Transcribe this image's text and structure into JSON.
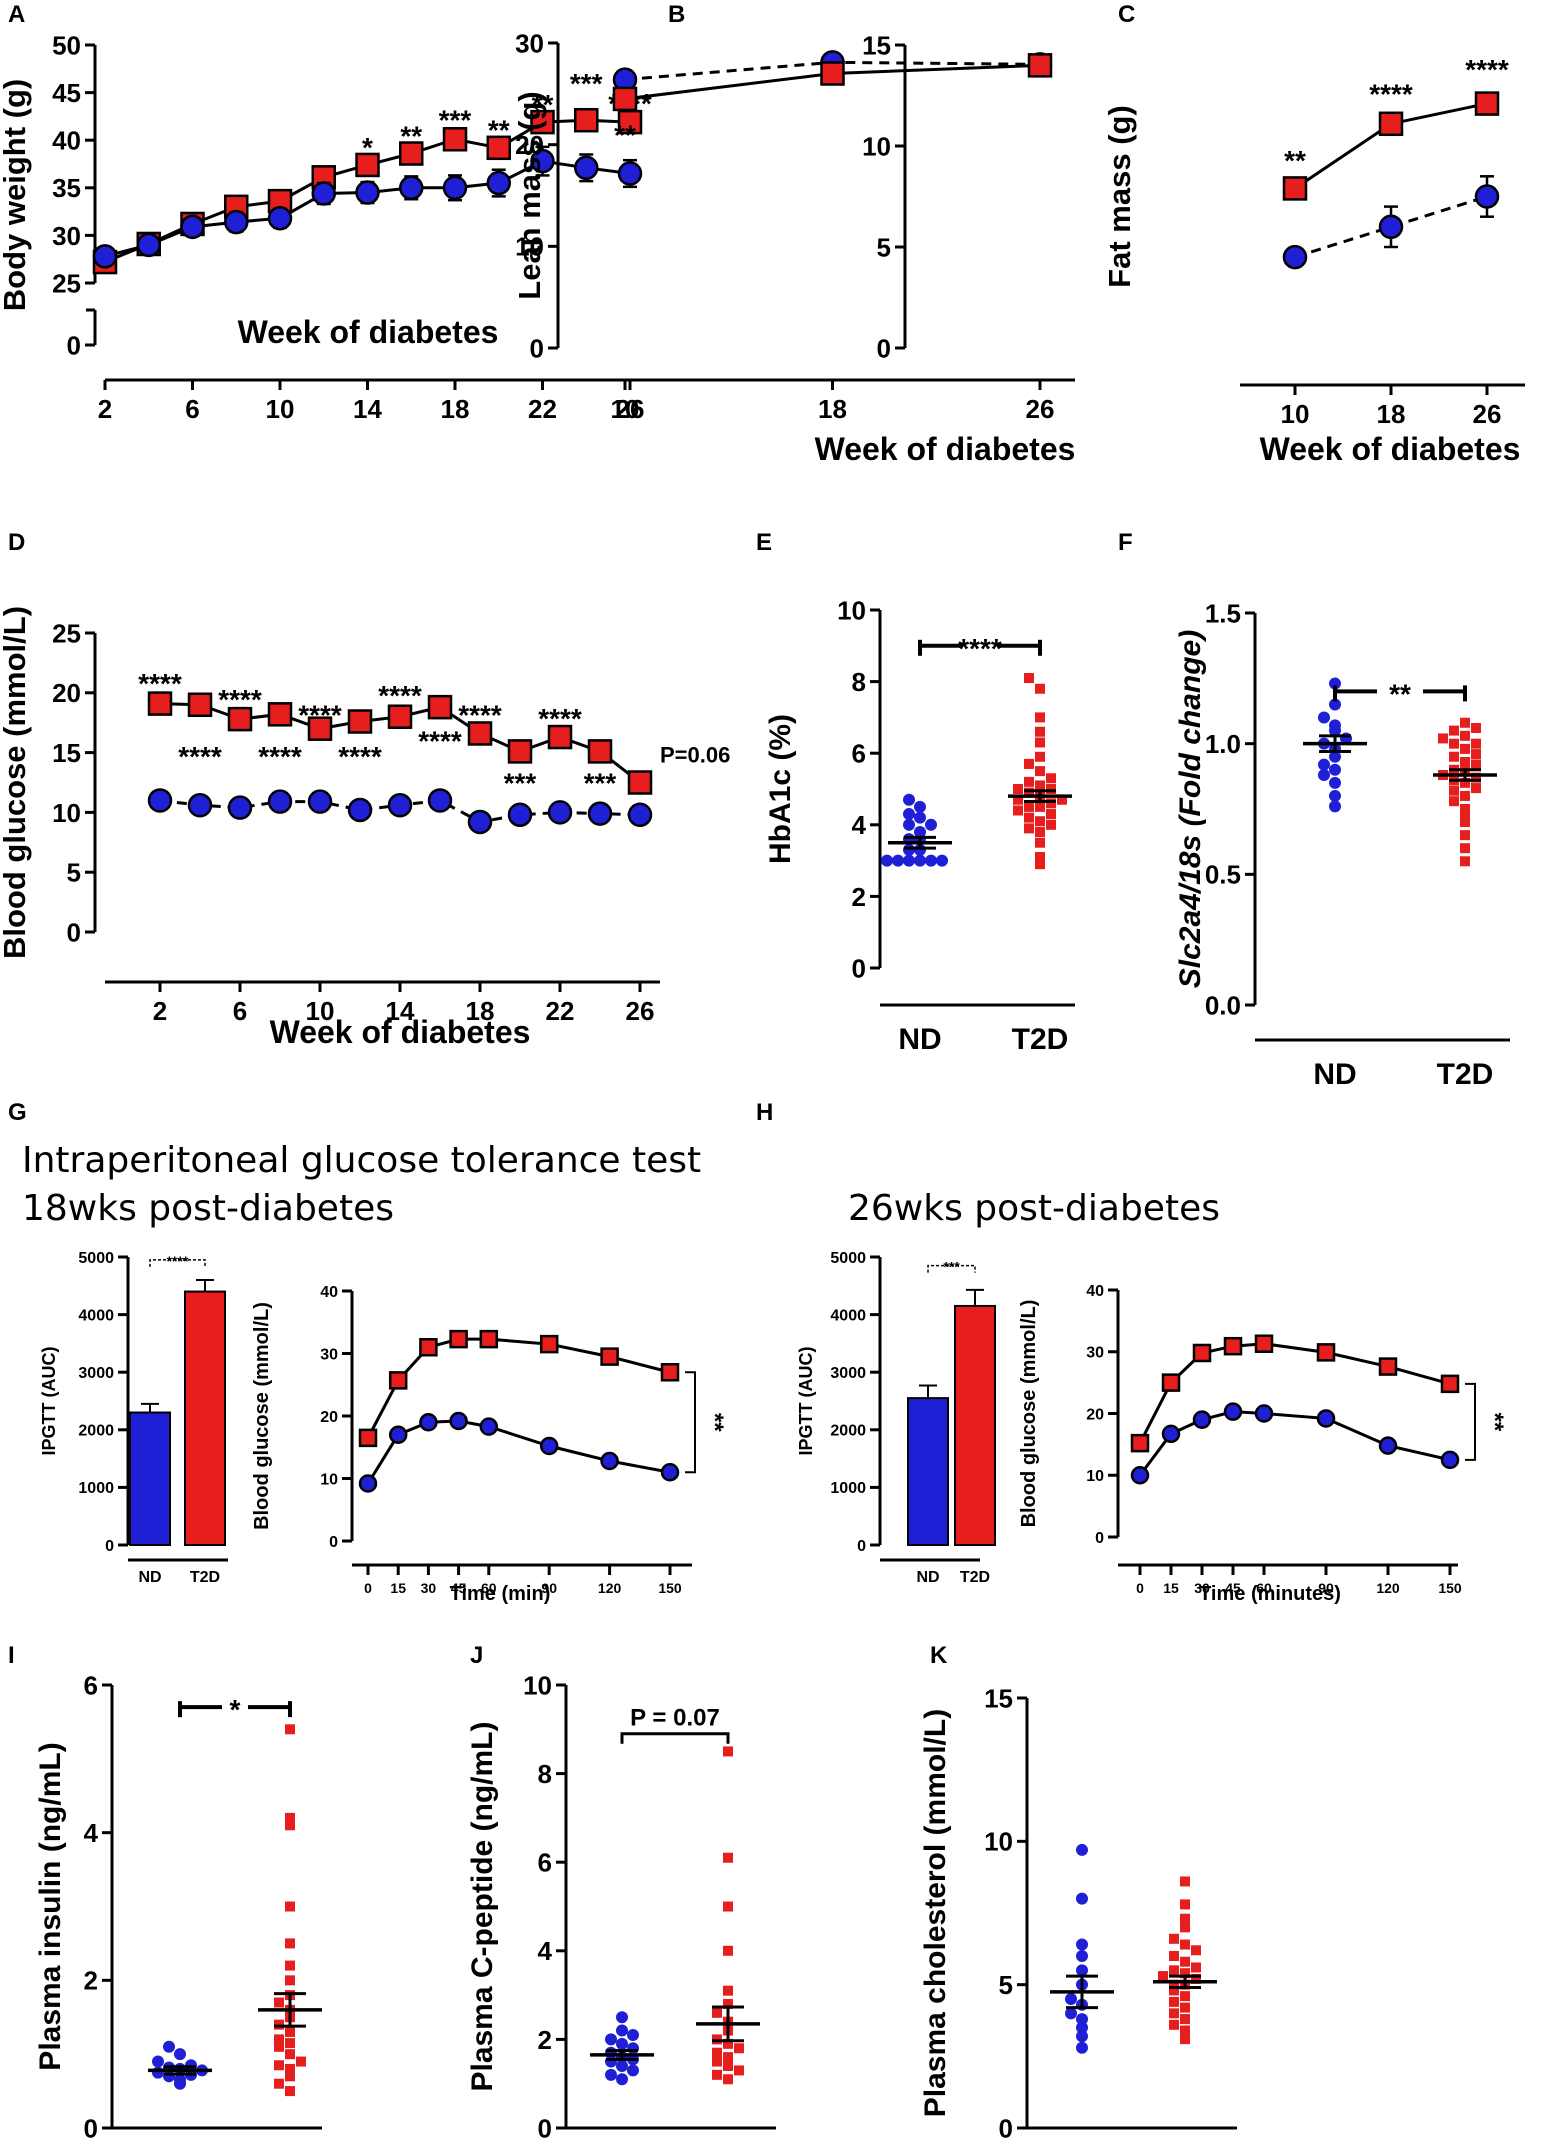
{
  "colors": {
    "nd": "#1f1fd6",
    "t2d": "#e61e1e",
    "axis": "#000000"
  },
  "titles": {
    "ipgtt": "Intraperitoneal glucose tolerance test",
    "wk18": "18wks post-diabetes",
    "wk26": "26wks post-diabetes"
  },
  "chart_data": [
    {
      "id": "A",
      "type": "line",
      "xlabel": "Week of diabetes",
      "ylabel": "Body weight (g)",
      "x": [
        2,
        4,
        6,
        8,
        10,
        12,
        14,
        16,
        18,
        20,
        22,
        24,
        26
      ],
      "xticks": [
        "2",
        "6",
        "10",
        "14",
        "18",
        "22",
        "26"
      ],
      "yticks": [
        "0",
        "25",
        "30",
        "35",
        "40",
        "45",
        "50"
      ],
      "ylim": [
        25,
        50
      ],
      "axis_break": true,
      "series": [
        {
          "name": "T2D",
          "marker": "square",
          "style": "solid",
          "values": [
            27.2,
            29.1,
            31.2,
            33.0,
            33.6,
            36.1,
            37.4,
            38.6,
            40.1,
            39.2,
            41.9,
            42.1,
            41.9
          ],
          "err": [
            0.6,
            0.6,
            0.7,
            0.8,
            0.8,
            0.9,
            0.9,
            0.9,
            0.9,
            1.0,
            1.0,
            1.0,
            1.0
          ]
        },
        {
          "name": "ND",
          "marker": "circle",
          "style": "solid",
          "values": [
            27.8,
            29.0,
            30.9,
            31.4,
            31.8,
            34.4,
            34.5,
            35.0,
            35.0,
            35.5,
            37.8,
            37.1,
            36.5
          ],
          "err": [
            0.6,
            0.6,
            0.7,
            1.0,
            1.0,
            1.1,
            1.1,
            1.2,
            1.3,
            1.4,
            1.5,
            1.4,
            1.4
          ]
        }
      ],
      "sig": [
        {
          "x": 14,
          "y": 39.3,
          "text": "*"
        },
        {
          "x": 16,
          "y": 40.5,
          "text": "**"
        },
        {
          "x": 18,
          "y": 42.2,
          "text": "***"
        },
        {
          "x": 20,
          "y": 41.1,
          "text": "**"
        },
        {
          "x": 22,
          "y": 43.8,
          "text": "**"
        },
        {
          "x": 24,
          "y": 46.0,
          "text": "***"
        },
        {
          "x": 26,
          "y": 43.9,
          "text": "****"
        }
      ]
    },
    {
      "id": "B",
      "type": "line",
      "xlabel": "Week of diabetes",
      "ylabel": "Lean mass (g)",
      "x": [
        10,
        18,
        26
      ],
      "xticks": [
        "10",
        "18",
        "26"
      ],
      "yticks": [
        "0",
        "10",
        "20",
        "30"
      ],
      "ylim": [
        0,
        30
      ],
      "series": [
        {
          "name": "ND",
          "marker": "circle",
          "style": "dashed",
          "values": [
            26.4,
            28.1,
            27.9
          ],
          "err": [
            0.4,
            0.4,
            0.4
          ]
        },
        {
          "name": "T2D",
          "marker": "square",
          "style": "solid",
          "values": [
            24.5,
            27.0,
            27.8
          ],
          "err": [
            0.5,
            0.5,
            0.5
          ]
        }
      ],
      "sig": [
        {
          "x": 10,
          "y": 21.0,
          "text": "**"
        }
      ]
    },
    {
      "id": "C",
      "type": "line",
      "xlabel": "Week of diabetes",
      "ylabel": "Fat mass (g)",
      "x": [
        10,
        18,
        26
      ],
      "xticks": [
        "10",
        "18",
        "26"
      ],
      "yticks": [
        "0",
        "5",
        "10",
        "15"
      ],
      "ylim": [
        0,
        15
      ],
      "series": [
        {
          "name": "ND",
          "marker": "circle",
          "style": "dashed",
          "values": [
            4.5,
            6.0,
            7.5
          ],
          "err": [
            0.4,
            1.0,
            1.0
          ]
        },
        {
          "name": "T2D",
          "marker": "square",
          "style": "solid",
          "values": [
            7.9,
            11.1,
            12.1
          ],
          "err": [
            0.3,
            0.4,
            0.5
          ]
        }
      ],
      "sig": [
        {
          "x": 10,
          "y": 9.3,
          "text": "**"
        },
        {
          "x": 18,
          "y": 12.6,
          "text": "****"
        },
        {
          "x": 26,
          "y": 13.8,
          "text": "****"
        }
      ]
    },
    {
      "id": "D",
      "type": "line",
      "xlabel": "Week of diabetes",
      "ylabel": "Blood glucose (mmol/L)",
      "x": [
        2,
        4,
        6,
        8,
        10,
        12,
        14,
        16,
        18,
        20,
        22,
        24,
        26
      ],
      "xticks": [
        "2",
        "6",
        "10",
        "14",
        "18",
        "22",
        "26"
      ],
      "yticks": [
        "0",
        "5",
        "10",
        "15",
        "20",
        "25"
      ],
      "ylim": [
        0,
        25
      ],
      "series": [
        {
          "name": "ND",
          "marker": "circle",
          "style": "dashed",
          "values": [
            11.0,
            10.6,
            10.4,
            10.9,
            10.9,
            10.2,
            10.6,
            11.0,
            9.2,
            9.8,
            10.0,
            9.9,
            9.8
          ],
          "err": [
            0.3,
            0.3,
            0.3,
            0.3,
            0.3,
            0.3,
            0.3,
            0.3,
            0.3,
            0.3,
            0.3,
            0.3,
            0.3
          ]
        },
        {
          "name": "T2D",
          "marker": "square",
          "style": "solid",
          "values": [
            19.1,
            19.0,
            17.8,
            18.2,
            17.0,
            17.6,
            18.0,
            18.8,
            16.6,
            15.1,
            16.3,
            15.1,
            12.5
          ],
          "err": [
            0.9,
            0.9,
            0.9,
            0.7,
            0.6,
            0.9,
            0.9,
            0.9,
            0.5,
            0.8,
            0.6,
            0.5,
            0.3
          ]
        }
      ],
      "sig": [
        {
          "x": 2,
          "y": 20.8,
          "text": "****"
        },
        {
          "x": 4,
          "y": 14.7,
          "text": "****"
        },
        {
          "x": 6,
          "y": 19.5,
          "text": "****"
        },
        {
          "x": 8,
          "y": 14.7,
          "text": "****"
        },
        {
          "x": 10,
          "y": 18.2,
          "text": "****"
        },
        {
          "x": 12,
          "y": 14.7,
          "text": "****"
        },
        {
          "x": 14,
          "y": 19.8,
          "text": "****"
        },
        {
          "x": 16,
          "y": 16.0,
          "text": "****"
        },
        {
          "x": 18,
          "y": 18.2,
          "text": "****"
        },
        {
          "x": 20,
          "y": 12.5,
          "text": "***"
        },
        {
          "x": 22,
          "y": 17.9,
          "text": "****"
        },
        {
          "x": 24,
          "y": 12.5,
          "text": "***"
        },
        {
          "x": 26,
          "y": 15.0,
          "text": "P=0.06"
        }
      ]
    },
    {
      "id": "E",
      "type": "scatter",
      "ylabel": "HbA1c (%)",
      "categories": [
        "ND",
        "T2D"
      ],
      "yticks": [
        "0",
        "2",
        "4",
        "6",
        "8",
        "10"
      ],
      "ylim": [
        0,
        10
      ],
      "groups": [
        {
          "name": "ND",
          "mean": 3.5,
          "sem": 0.15,
          "points": [
            3.0,
            3.0,
            3.0,
            3.0,
            3.0,
            3.0,
            3.3,
            3.3,
            3.6,
            3.6,
            3.8,
            4.0,
            4.0,
            4.2,
            4.3,
            4.5,
            4.7
          ]
        },
        {
          "name": "T2D",
          "mean": 4.8,
          "sem": 0.15,
          "points": [
            2.9,
            3.1,
            3.5,
            3.8,
            3.9,
            4.0,
            4.1,
            4.2,
            4.3,
            4.4,
            4.5,
            4.5,
            4.6,
            4.7,
            4.7,
            4.8,
            4.9,
            5.0,
            5.0,
            5.1,
            5.2,
            5.3,
            5.5,
            5.7,
            5.9,
            6.3,
            6.6,
            7.0,
            7.8,
            8.1
          ]
        }
      ],
      "bracket": {
        "text": "****",
        "y": 9.0
      }
    },
    {
      "id": "F",
      "type": "scatter",
      "ylabel": "Slc2a4/18s (Fold change)",
      "categories": [
        "ND",
        "T2D"
      ],
      "yticks": [
        "0.0",
        "0.5",
        "1.0",
        "1.5"
      ],
      "ylim": [
        0,
        1.5
      ],
      "groups": [
        {
          "name": "ND",
          "mean": 1.0,
          "sem": 0.03,
          "points": [
            0.76,
            0.8,
            0.85,
            0.88,
            0.9,
            0.92,
            0.95,
            0.98,
            1.0,
            1.02,
            1.05,
            1.07,
            1.1,
            1.15,
            1.23
          ]
        },
        {
          "name": "T2D",
          "mean": 0.88,
          "sem": 0.02,
          "points": [
            0.55,
            0.6,
            0.65,
            0.7,
            0.72,
            0.75,
            0.78,
            0.8,
            0.82,
            0.83,
            0.85,
            0.86,
            0.87,
            0.88,
            0.9,
            0.9,
            0.92,
            0.93,
            0.95,
            0.96,
            0.98,
            1.0,
            1.0,
            1.02,
            1.03,
            1.05,
            1.06,
            1.08
          ]
        }
      ],
      "bracket": {
        "text": "**",
        "y": 1.2
      }
    },
    {
      "id": "G-AUC",
      "type": "bar",
      "ylabel": "IPGTT (AUC)",
      "categories": [
        "ND",
        "T2D"
      ],
      "values": [
        2300,
        4400
      ],
      "err": [
        150,
        200
      ],
      "yticks": [
        "0",
        "1000",
        "2000",
        "3000",
        "4000",
        "5000"
      ],
      "ylim": [
        0,
        5000
      ],
      "bracket": {
        "text": "****",
        "y": 4950
      }
    },
    {
      "id": "G-curve",
      "type": "line",
      "xlabel": "Time (min)",
      "ylabel": "Blood glucose (mmol/L)",
      "x": [
        0,
        15,
        30,
        45,
        60,
        90,
        120,
        150
      ],
      "xticks": [
        "0",
        "15",
        "30",
        "45",
        "60",
        "90",
        "120",
        "150"
      ],
      "yticks": [
        "0",
        "10",
        "20",
        "30",
        "40"
      ],
      "ylim": [
        0,
        40
      ],
      "series": [
        {
          "name": "T2D",
          "marker": "square",
          "style": "solid",
          "values": [
            16.5,
            25.7,
            31.0,
            32.3,
            32.3,
            31.5,
            29.5,
            27.0
          ]
        },
        {
          "name": "ND",
          "marker": "circle",
          "style": "solid",
          "values": [
            9.2,
            17.0,
            19.0,
            19.2,
            18.3,
            15.2,
            12.8,
            11.0
          ]
        }
      ],
      "sig_text": "**"
    },
    {
      "id": "H-AUC",
      "type": "bar",
      "ylabel": "IPGTT (AUC)",
      "categories": [
        "ND",
        "T2D"
      ],
      "values": [
        2550,
        4150
      ],
      "err": [
        220,
        280
      ],
      "yticks": [
        "0",
        "1000",
        "2000",
        "3000",
        "4000",
        "5000"
      ],
      "ylim": [
        0,
        5000
      ],
      "bracket": {
        "text": "***",
        "y": 4850
      }
    },
    {
      "id": "H-curve",
      "type": "line",
      "xlabel": "Time (minutes)",
      "ylabel": "Blood glucose (mmol/L)",
      "x": [
        0,
        15,
        30,
        45,
        60,
        90,
        120,
        150
      ],
      "xticks": [
        "0",
        "15",
        "30",
        "45",
        "60",
        "90",
        "120",
        "150"
      ],
      "yticks": [
        "0",
        "10",
        "20",
        "30",
        "40"
      ],
      "ylim": [
        0,
        40
      ],
      "series": [
        {
          "name": "T2D",
          "marker": "square",
          "style": "solid",
          "values": [
            15.2,
            25.0,
            29.8,
            30.9,
            31.3,
            29.9,
            27.6,
            24.8
          ]
        },
        {
          "name": "ND",
          "marker": "circle",
          "style": "solid",
          "values": [
            10.0,
            16.7,
            19.0,
            20.3,
            20.0,
            19.2,
            14.8,
            12.5
          ]
        }
      ],
      "sig_text": "**"
    },
    {
      "id": "I",
      "type": "scatter",
      "ylabel": "Plasma insulin (ng/mL)",
      "categories": [
        "ND",
        "T2D"
      ],
      "yticks": [
        "0",
        "2",
        "4",
        "6"
      ],
      "ylim": [
        0,
        6
      ],
      "groups": [
        {
          "name": "ND",
          "mean": 0.78,
          "sem": 0.05,
          "points": [
            0.6,
            0.65,
            0.7,
            0.72,
            0.75,
            0.78,
            0.8,
            0.82,
            0.85,
            0.9,
            1.0,
            1.1
          ]
        },
        {
          "name": "T2D",
          "mean": 1.6,
          "sem": 0.22,
          "points": [
            0.5,
            0.6,
            0.7,
            0.8,
            0.85,
            0.9,
            1.0,
            1.1,
            1.15,
            1.2,
            1.3,
            1.4,
            1.5,
            1.6,
            1.7,
            1.8,
            2.0,
            2.2,
            2.5,
            3.0,
            4.1,
            4.2,
            5.4
          ]
        }
      ],
      "bracket": {
        "text": "*",
        "y": 5.7
      }
    },
    {
      "id": "J",
      "type": "scatter",
      "ylabel": "Plasma C-peptide (ng/mL)",
      "categories": [
        "ND",
        "T2D"
      ],
      "yticks": [
        "0",
        "2",
        "4",
        "6",
        "8",
        "10"
      ],
      "ylim": [
        0,
        10
      ],
      "groups": [
        {
          "name": "ND",
          "mean": 1.65,
          "sem": 0.1,
          "points": [
            1.1,
            1.2,
            1.3,
            1.4,
            1.5,
            1.55,
            1.6,
            1.7,
            1.8,
            1.9,
            2.0,
            2.1,
            2.2,
            2.5
          ]
        },
        {
          "name": "T2D",
          "mean": 2.35,
          "sem": 0.38,
          "points": [
            1.1,
            1.2,
            1.3,
            1.4,
            1.5,
            1.6,
            1.7,
            1.8,
            1.9,
            2.0,
            2.2,
            2.4,
            2.6,
            2.8,
            3.1,
            4.0,
            5.0,
            6.1,
            8.5
          ]
        }
      ],
      "bracket": {
        "text": "P = 0.07",
        "y": 8.9
      }
    },
    {
      "id": "K",
      "type": "scatter",
      "ylabel": "Plasma cholesterol (mmol/L)",
      "categories": [
        "ND",
        "T2D"
      ],
      "yticks": [
        "0",
        "5",
        "10",
        "15"
      ],
      "ylim": [
        0,
        15
      ],
      "groups": [
        {
          "name": "ND",
          "mean": 4.75,
          "sem": 0.55,
          "points": [
            2.8,
            3.2,
            3.5,
            3.8,
            4.0,
            4.3,
            4.5,
            5.0,
            5.5,
            6.0,
            6.4,
            8.0,
            9.7
          ]
        },
        {
          "name": "T2D",
          "mean": 5.1,
          "sem": 0.2,
          "points": [
            3.1,
            3.4,
            3.6,
            3.8,
            4.0,
            4.2,
            4.4,
            4.6,
            4.8,
            5.0,
            5.0,
            5.2,
            5.3,
            5.4,
            5.5,
            5.6,
            5.8,
            6.0,
            6.2,
            6.4,
            6.6,
            7.0,
            7.3,
            7.8,
            8.6
          ]
        }
      ]
    }
  ],
  "panel_labels": [
    "A",
    "B",
    "C",
    "D",
    "E",
    "F",
    "G",
    "H",
    "I",
    "J",
    "K"
  ]
}
